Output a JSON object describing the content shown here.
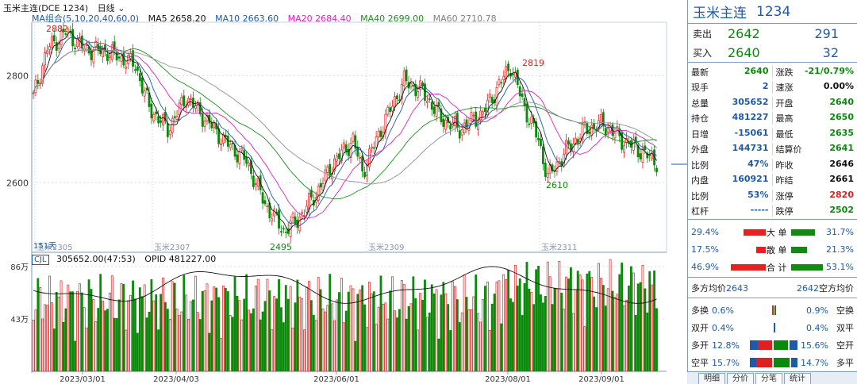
{
  "title": {
    "name": "玉米主连",
    "code": "(DCE 1234)",
    "period": "日线"
  },
  "ma_bar": [
    {
      "label": "MA组合(5,10,20,40,60,0)",
      "color": "#1e5aa8"
    },
    {
      "label": "MA5 2658.20",
      "color": "#111111"
    },
    {
      "label": "MA10 2663.60",
      "color": "#1e5aa8"
    },
    {
      "label": "MA20 2684.40",
      "color": "#e020c0"
    },
    {
      "label": "MA40 2699.00",
      "color": "#18921a"
    },
    {
      "label": "MA60 2710.78",
      "color": "#808080"
    }
  ],
  "vol_bar": {
    "badge": "CJL",
    "vol": "305652.00(47:53)",
    "opid": "OPID 481227.00"
  },
  "price_axis": {
    "labels": [
      "2800",
      "2600"
    ]
  },
  "vol_axis": {
    "labels": [
      "86万",
      "43万"
    ]
  },
  "price_annotations": [
    "2882",
    "2819",
    "2610",
    "2495"
  ],
  "count_label": "151天",
  "contract_labels": [
    "玉米2305",
    "玉米2307",
    "玉米2309",
    "玉米2311"
  ],
  "date_labels": [
    "2023/03/01",
    "2023/04/03",
    "2023/06/01",
    "2023/08/01",
    "2023/09/01"
  ],
  "panel": {
    "name": "玉米主连",
    "code": "1234",
    "ask": {
      "label": "卖出",
      "price": "2642",
      "qty": "291"
    },
    "bid": {
      "label": "买入",
      "price": "2640",
      "qty": "32"
    },
    "quote": [
      [
        {
          "k": "最新",
          "v": "2640",
          "c": "green"
        },
        {
          "k": "涨跌",
          "v": "-21/0.79%",
          "c": "green"
        }
      ],
      [
        {
          "k": "现手",
          "v": "2",
          "c": "blue"
        },
        {
          "k": "速涨",
          "v": "0.00%",
          "c": "black"
        }
      ],
      [
        {
          "k": "总量",
          "v": "305652",
          "c": "blue"
        },
        {
          "k": "开盘",
          "v": "2640",
          "c": "green"
        }
      ],
      [
        {
          "k": "持仓",
          "v": "481227",
          "c": "blue"
        },
        {
          "k": "最高",
          "v": "2650",
          "c": "green"
        }
      ],
      [
        {
          "k": "日增",
          "v": "-15061",
          "c": "blue"
        },
        {
          "k": "最低",
          "v": "2635",
          "c": "green"
        }
      ],
      [
        {
          "k": "外盘",
          "v": "144731",
          "c": "blue"
        },
        {
          "k": "结算价",
          "v": "2641",
          "c": "green"
        }
      ],
      [
        {
          "k": "比例",
          "v": "47%",
          "c": "blue"
        },
        {
          "k": "昨收",
          "v": "2646",
          "c": "black"
        }
      ],
      [
        {
          "k": "内盘",
          "v": "160921",
          "c": "blue"
        },
        {
          "k": "昨结",
          "v": "2661",
          "c": "black"
        }
      ],
      [
        {
          "k": "比例",
          "v": "53%",
          "c": "blue"
        },
        {
          "k": "涨停",
          "v": "2820",
          "c": "red"
        }
      ],
      [
        {
          "k": "杠杆",
          "v": "-----",
          "c": "blue"
        },
        {
          "k": "跌停",
          "v": "2502",
          "c": "green"
        }
      ]
    ],
    "orders": [
      {
        "left": "29.4%",
        "label": "大 单",
        "right": "31.7%"
      },
      {
        "left": "17.5%",
        "label": "散 单",
        "right": "21.3%"
      },
      {
        "left": "46.9%",
        "label": "合 计",
        "right": "53.1%"
      }
    ],
    "avg": {
      "long_label": "多方均价",
      "long_value": "2643",
      "short_value": "2642",
      "short_label": "空方均价"
    },
    "flow": [
      {
        "l": "多换",
        "lv": "0.6%",
        "rv": "0.9%",
        "r": "空换"
      },
      {
        "l": "双开",
        "lv": "0.4%",
        "rv": "0.4%",
        "r": "双平"
      },
      {
        "l": "多开",
        "lv": "12.8%",
        "rv": "15.6%",
        "r": "空开"
      },
      {
        "l": "空平",
        "lv": "15.7%",
        "rv": "14.7%",
        "r": "多平"
      }
    ],
    "tabs": [
      "明细",
      "分价",
      "分笔",
      "统计"
    ]
  },
  "colors": {
    "up": "#e02020",
    "down": "#0a8a0a",
    "accent": "#1e5aa8"
  }
}
